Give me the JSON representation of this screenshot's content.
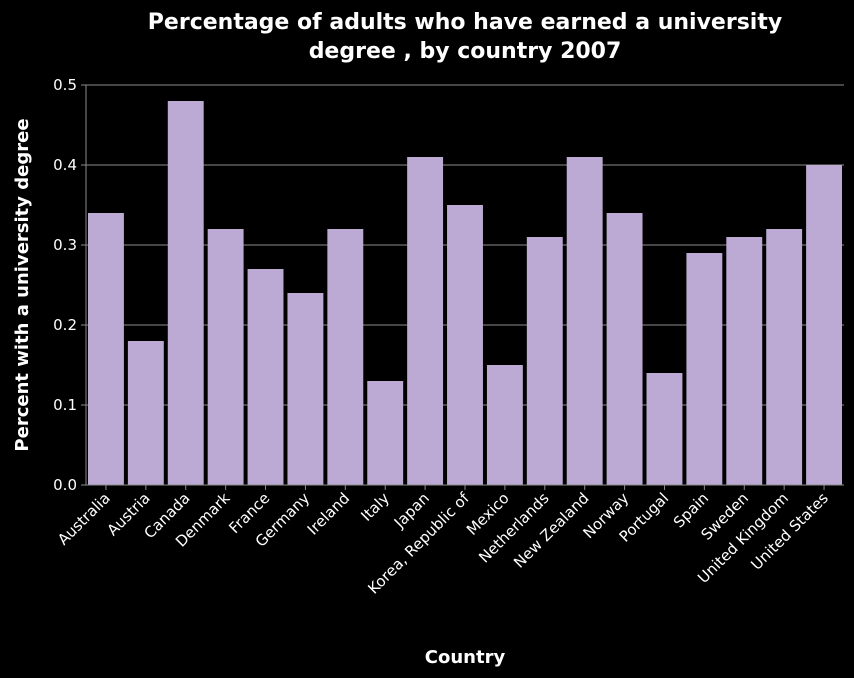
{
  "chart_data": {
    "type": "bar",
    "title_line1": "Percentage of adults who have earned a university",
    "title_line2": "degree , by country 2007",
    "xlabel": "Country",
    "ylabel": "Percent with a university degree",
    "ylim": [
      0,
      0.5
    ],
    "yticks": [
      "0.0",
      "0.1",
      "0.2",
      "0.3",
      "0.4",
      "0.5"
    ],
    "grid": true,
    "categories": [
      "Australia",
      "Austria",
      "Canada",
      "Denmark",
      "France",
      "Germany",
      "Ireland",
      "Italy",
      "Japan",
      "Korea, Republic of",
      "Mexico",
      "Netherlands",
      "New Zealand",
      "Norway",
      "Portugal",
      "Spain",
      "Sweden",
      "United Kingdom",
      "United States"
    ],
    "values": [
      0.34,
      0.18,
      0.48,
      0.32,
      0.27,
      0.24,
      0.32,
      0.13,
      0.41,
      0.35,
      0.15,
      0.31,
      0.41,
      0.34,
      0.14,
      0.29,
      0.31,
      0.32,
      0.4
    ],
    "colors": {
      "bar": "#bcaad4",
      "background": "#000000",
      "text": "#ffffff",
      "grid": "#8c8c8c"
    }
  }
}
